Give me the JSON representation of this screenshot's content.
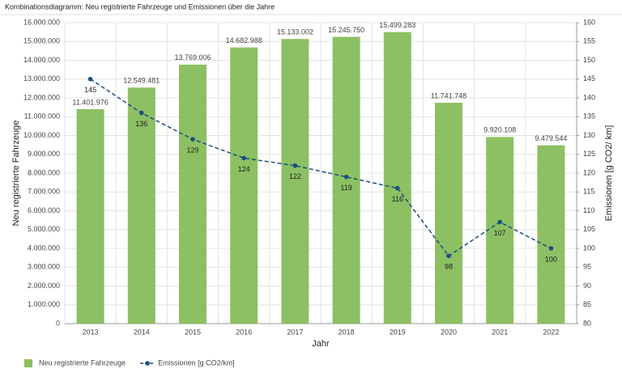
{
  "chart_data": {
    "type": "bar",
    "title": "Kombinationsdiagramm: Neu registrierte Fahrzeuge und Emissionen über die Jahre",
    "xlabel": "Jahr",
    "ylabel": "Neu registrierte Fahrzeuge",
    "y2label": "Emissionen [g CO2/ km]",
    "categories": [
      "2013",
      "2014",
      "2015",
      "2016",
      "2017",
      "2018",
      "2019",
      "2020",
      "2021",
      "2022"
    ],
    "series": [
      {
        "name": "Neu registrierte Fahrzeuge",
        "type": "bar",
        "color": "#8cc063",
        "values": [
          11401976,
          12549481,
          13769006,
          14682988,
          15133002,
          15245750,
          15499283,
          11741748,
          9920108,
          9479544
        ],
        "value_labels": [
          "11.401.976",
          "12.549.481",
          "13.769.006",
          "14.682.988",
          "15.133.002",
          "15.245.750",
          "15.499.283",
          "11.741.748",
          "9.920.108",
          "9.479.544"
        ]
      },
      {
        "name": "Emissionen [g CO2/km]",
        "type": "line",
        "axis": "y2",
        "color": "#1b4f80",
        "values": [
          145,
          136,
          129,
          124,
          122,
          119,
          116,
          98,
          107,
          100
        ]
      }
    ],
    "ylim": [
      0,
      16000000
    ],
    "yticks": [
      0,
      {
        "value": 1000000,
        "label": "1.000.000"
      },
      {
        "value": 2000000,
        "label": "2.000.000"
      },
      {
        "value": 3000000,
        "label": "3.000.000"
      },
      {
        "value": 4000000,
        "label": "4.000.000"
      },
      {
        "value": 5000000,
        "label": "5.000.000"
      },
      {
        "value": 6000000,
        "label": "6.000.000"
      },
      {
        "value": 7000000,
        "label": "7.000.000"
      },
      {
        "value": 8000000,
        "label": "8.000.000"
      },
      {
        "value": 9000000,
        "label": "9.000.000"
      },
      {
        "value": 10000000,
        "label": "10.000.000"
      },
      {
        "value": 11000000,
        "label": "11.000.000"
      },
      {
        "value": 12000000,
        "label": "12.000.000"
      },
      {
        "value": 13000000,
        "label": "13.000.000"
      },
      {
        "value": 14000000,
        "label": "14.000.000"
      },
      {
        "value": 15000000,
        "label": "15.000.000"
      },
      {
        "value": 16000000,
        "label": "16.000.000"
      }
    ],
    "y2lim": [
      80,
      160
    ],
    "y2ticks": [
      80,
      85,
      90,
      95,
      100,
      105,
      110,
      115,
      120,
      125,
      130,
      135,
      140,
      145,
      150,
      155,
      160
    ],
    "grid": true
  }
}
